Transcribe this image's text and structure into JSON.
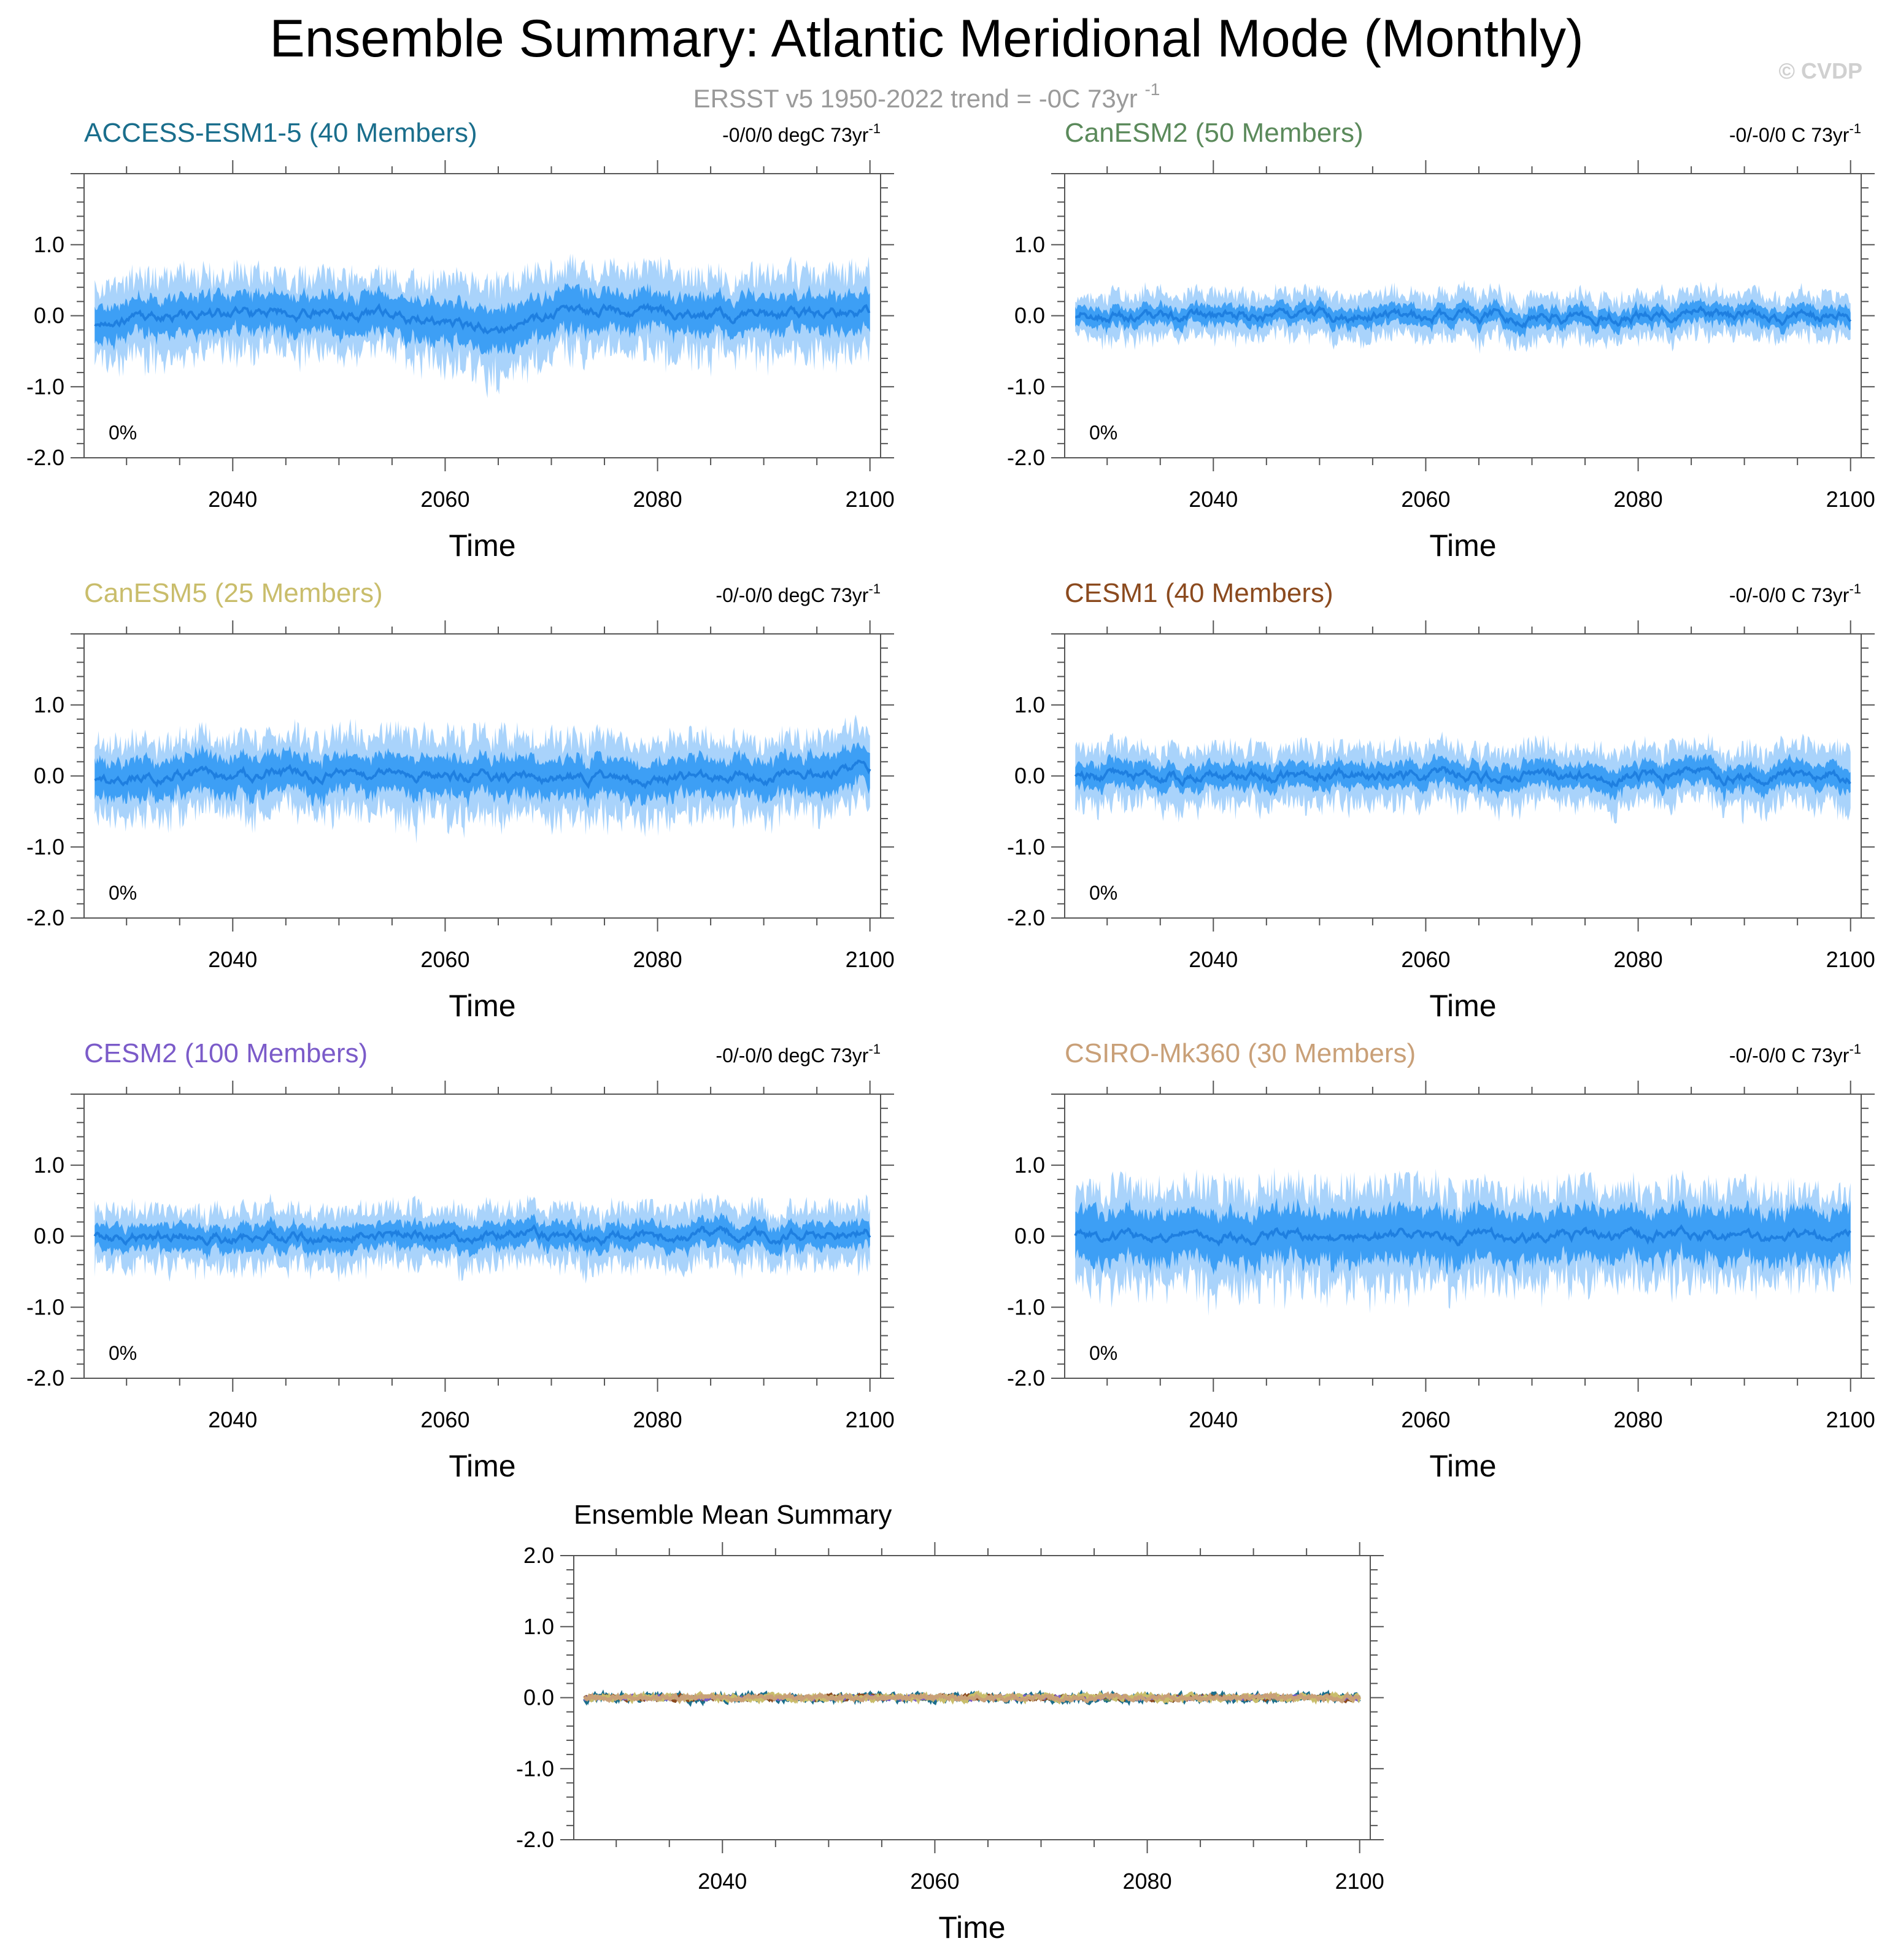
{
  "figure": {
    "title": "Ensemble Summary: Atlantic Meridional Mode (Monthly)",
    "subtitle_main": "ERSST v5 1950-2022 trend = -0C 73yr",
    "subtitle_sup": "-1",
    "copyright": "© CVDP"
  },
  "colors": {
    "title": "#000000",
    "subtitle": "#9a9a9a",
    "copyright": "#d0d0d0",
    "band_outer": "#a9d3fb",
    "band_inner": "#3d9ff5",
    "mean_line": "#1e7fe0",
    "axis": "#555555"
  },
  "chart_data": [
    {
      "type": "area",
      "title": "ACCESS-ESM1-5 (40 Members)",
      "title_color": "#1a6e8c",
      "trend_text": "-0/0/0 degC 73yr",
      "trend_sup": "-1",
      "percent_label": "0%",
      "xlabel": "Time",
      "xlim": [
        2026,
        2101
      ],
      "ylim": [
        -2.0,
        2.0
      ],
      "xticks": [
        2040,
        2060,
        2080,
        2100
      ],
      "yticks": [
        -2.0,
        -1.0,
        0.0,
        1.0
      ],
      "ytick_labels": [
        "-2.0",
        "-1.0",
        "0.0",
        "1.0"
      ],
      "series": [
        {
          "values": {
            "x": [
              2027,
              2035,
              2045,
              2055,
              2065,
              2075,
              2085,
              2095,
              2100
            ],
            "mean": [
              -0.1,
              0.0,
              0.05,
              0.0,
              -0.15,
              0.1,
              0.0,
              0.0,
              0.05
            ],
            "inner": [
              0.3,
              0.3,
              0.3,
              0.3,
              0.35,
              0.3,
              0.3,
              0.3,
              0.3
            ],
            "outer": [
              0.6,
              0.65,
              0.6,
              0.6,
              0.75,
              0.65,
              0.65,
              0.65,
              0.7
            ]
          }
        }
      ]
    },
    {
      "type": "area",
      "title": "CanESM2 (50 Members)",
      "title_color": "#5b8a5b",
      "trend_text": "-0/-0/0 C 73yr",
      "trend_sup": "-1",
      "percent_label": "0%",
      "xlabel": "Time",
      "xlim": [
        2026,
        2101
      ],
      "ylim": [
        -2.0,
        2.0
      ],
      "xticks": [
        2040,
        2060,
        2080,
        2100
      ],
      "yticks": [
        -2.0,
        -1.0,
        0.0,
        1.0
      ],
      "ytick_labels": [
        "-2.0",
        "-1.0",
        "0.0",
        "1.0"
      ],
      "series": [
        {
          "values": {
            "x": [
              2027,
              2040,
              2055,
              2070,
              2085,
              2100
            ],
            "mean": [
              0.0,
              0.0,
              0.0,
              0.0,
              0.0,
              0.0
            ],
            "inner": [
              0.15,
              0.15,
              0.15,
              0.15,
              0.15,
              0.15
            ],
            "outer": [
              0.35,
              0.35,
              0.35,
              0.35,
              0.35,
              0.35
            ]
          }
        }
      ]
    },
    {
      "type": "area",
      "title": "CanESM5 (25 Members)",
      "title_color": "#c9bd6b",
      "trend_text": "-0/-0/0 degC 73yr",
      "trend_sup": "-1",
      "percent_label": "0%",
      "xlabel": "Time",
      "xlim": [
        2026,
        2101
      ],
      "ylim": [
        -2.0,
        2.0
      ],
      "xticks": [
        2040,
        2060,
        2080,
        2100
      ],
      "yticks": [
        -2.0,
        -1.0,
        0.0,
        1.0
      ],
      "ytick_labels": [
        "-2.0",
        "-1.0",
        "0.0",
        "1.0"
      ],
      "series": [
        {
          "values": {
            "x": [
              2027,
              2040,
              2055,
              2070,
              2085,
              2100
            ],
            "mean": [
              -0.05,
              0.05,
              0.0,
              0.0,
              -0.05,
              0.1
            ],
            "inner": [
              0.3,
              0.3,
              0.3,
              0.3,
              0.3,
              0.3
            ],
            "outer": [
              0.6,
              0.6,
              0.65,
              0.65,
              0.6,
              0.6
            ]
          }
        }
      ]
    },
    {
      "type": "area",
      "title": "CESM1 (40 Members)",
      "title_color": "#8b4a1e",
      "trend_text": "-0/-0/0 C 73yr",
      "trend_sup": "-1",
      "percent_label": "0%",
      "xlabel": "Time",
      "xlim": [
        2026,
        2101
      ],
      "ylim": [
        -2.0,
        2.0
      ],
      "xticks": [
        2040,
        2060,
        2080,
        2100
      ],
      "yticks": [
        -2.0,
        -1.0,
        0.0,
        1.0
      ],
      "ytick_labels": [
        "-2.0",
        "-1.0",
        "0.0",
        "1.0"
      ],
      "series": [
        {
          "values": {
            "x": [
              2027,
              2040,
              2055,
              2070,
              2085,
              2100
            ],
            "mean": [
              0.0,
              0.0,
              0.0,
              0.0,
              0.0,
              0.0
            ],
            "inner": [
              0.2,
              0.2,
              0.2,
              0.2,
              0.2,
              0.2
            ],
            "outer": [
              0.45,
              0.45,
              0.45,
              0.45,
              0.45,
              0.5
            ]
          }
        }
      ]
    },
    {
      "type": "area",
      "title": "CESM2 (100 Members)",
      "title_color": "#7b5bc9",
      "trend_text": "-0/-0/0 degC 73yr",
      "trend_sup": "-1",
      "percent_label": "0%",
      "xlabel": "Time",
      "xlim": [
        2026,
        2101
      ],
      "ylim": [
        -2.0,
        2.0
      ],
      "xticks": [
        2040,
        2060,
        2080,
        2100
      ],
      "yticks": [
        -2.0,
        -1.0,
        0.0,
        1.0
      ],
      "ytick_labels": [
        "-2.0",
        "-1.0",
        "0.0",
        "1.0"
      ],
      "series": [
        {
          "values": {
            "x": [
              2027,
              2040,
              2055,
              2070,
              2085,
              2100
            ],
            "mean": [
              0.0,
              0.0,
              0.0,
              0.0,
              0.0,
              0.05
            ],
            "inner": [
              0.2,
              0.2,
              0.2,
              0.2,
              0.2,
              0.2
            ],
            "outer": [
              0.45,
              0.45,
              0.45,
              0.45,
              0.45,
              0.45
            ]
          }
        }
      ]
    },
    {
      "type": "area",
      "title": "CSIRO-Mk360 (30 Members)",
      "title_color": "#c9a078",
      "trend_text": "-0/-0/0 C 73yr",
      "trend_sup": "-1",
      "percent_label": "0%",
      "xlabel": "Time",
      "xlim": [
        2026,
        2101
      ],
      "ylim": [
        -2.0,
        2.0
      ],
      "xticks": [
        2040,
        2060,
        2080,
        2100
      ],
      "yticks": [
        -2.0,
        -1.0,
        0.0,
        1.0
      ],
      "ytick_labels": [
        "-2.0",
        "-1.0",
        "0.0",
        "1.0"
      ],
      "series": [
        {
          "values": {
            "x": [
              2027,
              2040,
              2055,
              2070,
              2085,
              2100
            ],
            "mean": [
              0.0,
              0.0,
              0.0,
              0.0,
              0.0,
              0.0
            ],
            "inner": [
              0.4,
              0.4,
              0.4,
              0.4,
              0.4,
              0.4
            ],
            "outer": [
              0.75,
              0.8,
              0.8,
              0.75,
              0.75,
              0.7
            ]
          }
        }
      ]
    },
    {
      "type": "line",
      "title": "Ensemble Mean Summary",
      "title_color": "#000000",
      "xlabel": "Time",
      "xlim": [
        2026,
        2101
      ],
      "ylim": [
        -2.0,
        2.0
      ],
      "xticks": [
        2040,
        2060,
        2080,
        2100
      ],
      "yticks": [
        -2.0,
        -1.0,
        0.0,
        1.0,
        2.0
      ],
      "ytick_labels": [
        "-2.0",
        "-1.0",
        "0.0",
        "1.0",
        "2.0"
      ],
      "series": [
        {
          "color": "#1a6e8c",
          "amplitude": 0.12
        },
        {
          "color": "#5b8a5b",
          "amplitude": 0.05
        },
        {
          "color": "#8b4a1e",
          "amplitude": 0.07
        },
        {
          "color": "#7b5bc9",
          "amplitude": 0.05
        },
        {
          "color": "#c9bd6b",
          "amplitude": 0.1
        },
        {
          "color": "#c9a078",
          "amplitude": 0.08
        }
      ]
    }
  ]
}
